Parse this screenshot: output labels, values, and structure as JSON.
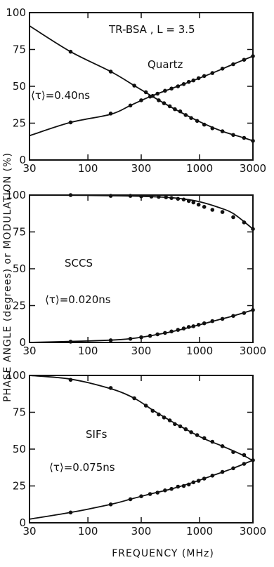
{
  "ylabel": "PHASE  ANGLE (degrees)   or   MODULATION  (%)",
  "xlabel": "FREQUENCY  (MHz)",
  "chart_data": [
    {
      "type": "scatter",
      "xscale": "log",
      "xlim": [
        30,
        3000
      ],
      "ylim": [
        0,
        100
      ],
      "xticks": [
        30,
        100,
        300,
        1000,
        3000
      ],
      "yticks": [
        0,
        25,
        50,
        75,
        100
      ],
      "title": "TR-BSA , L = 3.5",
      "annotations": [
        {
          "text": "Quartz"
        },
        {
          "text": "⟨τ⟩=0.40ns"
        }
      ],
      "series": [
        {
          "role": "modulation",
          "kind": "points",
          "x": [
            70,
            160,
            260,
            330,
            380,
            430,
            480,
            540,
            600,
            670,
            750,
            840,
            950,
            1100,
            1300,
            1600,
            2000,
            2500,
            3000
          ],
          "y": [
            73.5,
            60,
            50.5,
            46,
            43.5,
            40.5,
            38.5,
            36.5,
            34.5,
            33,
            30.5,
            28.5,
            26.5,
            24,
            21.5,
            19.5,
            17,
            15,
            13
          ]
        },
        {
          "role": "modulation",
          "kind": "curve",
          "x": [
            30,
            70,
            160,
            260,
            380,
            600,
            1000,
            1600,
            2500,
            3000
          ],
          "y": [
            91,
            73.5,
            60,
            50.5,
            43,
            34.5,
            26,
            19.5,
            15,
            13
          ]
        },
        {
          "role": "phase",
          "kind": "points",
          "x": [
            70,
            160,
            240,
            300,
            360,
            420,
            490,
            560,
            640,
            720,
            800,
            880,
            980,
            1100,
            1300,
            1600,
            2000,
            2500,
            3000
          ],
          "y": [
            25.5,
            31.5,
            37,
            40.5,
            43,
            45,
            47,
            48.5,
            50,
            51.5,
            53,
            54,
            55.5,
            57,
            59,
            62,
            65,
            68,
            70.5
          ]
        },
        {
          "role": "phase",
          "kind": "curve",
          "x": [
            30,
            70,
            160,
            240,
            360,
            560,
            880,
            1300,
            2000,
            3000
          ],
          "y": [
            16.5,
            25.5,
            31,
            37,
            43,
            48.5,
            54,
            59,
            65,
            70.5
          ]
        }
      ]
    },
    {
      "type": "scatter",
      "xscale": "log",
      "xlim": [
        30,
        3000
      ],
      "ylim": [
        0,
        100
      ],
      "xticks": [
        30,
        100,
        300,
        1000,
        3000
      ],
      "yticks": [
        0,
        25,
        50,
        75,
        100
      ],
      "annotations": [
        {
          "text": "SCCS"
        },
        {
          "text": "⟨τ⟩=0.020ns"
        }
      ],
      "series": [
        {
          "role": "modulation",
          "kind": "points",
          "x": [
            70,
            160,
            240,
            300,
            370,
            430,
            500,
            560,
            640,
            720,
            800,
            880,
            980,
            1100,
            1300,
            1600,
            2000,
            2500,
            3000
          ],
          "y": [
            100,
            99.5,
            99.5,
            99.2,
            99,
            98.8,
            98.5,
            98,
            97.5,
            97,
            96,
            95,
            93.5,
            92,
            90,
            88.5,
            85,
            81.5,
            77
          ]
        },
        {
          "role": "modulation",
          "kind": "curve",
          "x": [
            30,
            100,
            200,
            300,
            500,
            700,
            1000,
            1500,
            2000,
            3000
          ],
          "y": [
            100,
            99.8,
            99.5,
            99.2,
            98.5,
            97.5,
            95.5,
            91.5,
            87.5,
            77
          ]
        },
        {
          "role": "phase",
          "kind": "points",
          "x": [
            70,
            160,
            240,
            300,
            360,
            420,
            490,
            560,
            640,
            720,
            800,
            880,
            980,
            1100,
            1300,
            1600,
            2000,
            2500,
            3000
          ],
          "y": [
            0.5,
            1.5,
            2.5,
            3.5,
            4.5,
            5.5,
            6.5,
            7.5,
            8.5,
            9.5,
            10.5,
            11,
            12,
            13,
            14.5,
            16,
            18,
            20,
            22
          ]
        },
        {
          "role": "phase",
          "kind": "curve",
          "x": [
            30,
            100,
            200,
            300,
            500,
            700,
            1000,
            1500,
            2000,
            3000
          ],
          "y": [
            0,
            1,
            2,
            3.5,
            6.5,
            9,
            12,
            15.5,
            18,
            22
          ]
        }
      ]
    },
    {
      "type": "scatter",
      "xscale": "log",
      "xlim": [
        30,
        3000
      ],
      "ylim": [
        0,
        100
      ],
      "xticks": [
        30,
        100,
        300,
        1000,
        3000
      ],
      "yticks": [
        0,
        25,
        50,
        75,
        100
      ],
      "annotations": [
        {
          "text": "SIFs"
        },
        {
          "text": "⟨τ⟩=0.075ns"
        }
      ],
      "series": [
        {
          "role": "modulation",
          "kind": "points",
          "x": [
            70,
            160,
            260,
            330,
            380,
            430,
            480,
            540,
            600,
            670,
            750,
            840,
            950,
            1100,
            1300,
            1600,
            2000,
            2500
          ],
          "y": [
            97,
            91.5,
            84.5,
            79.5,
            76,
            73.5,
            71.5,
            69.5,
            67,
            65.5,
            63.5,
            61.5,
            59.5,
            57.5,
            55,
            52,
            48,
            46
          ]
        },
        {
          "role": "modulation",
          "kind": "curve",
          "x": [
            30,
            70,
            160,
            260,
            380,
            540,
            750,
            1100,
            1600,
            2500,
            3000
          ],
          "y": [
            100,
            97.5,
            91,
            84.5,
            76.5,
            69.5,
            63.5,
            57,
            52,
            45.5,
            42
          ]
        },
        {
          "role": "phase",
          "kind": "points",
          "x": [
            70,
            160,
            240,
            300,
            360,
            420,
            490,
            560,
            640,
            720,
            800,
            880,
            980,
            1100,
            1300,
            1600,
            2000,
            2500,
            3000
          ],
          "y": [
            7,
            12.5,
            16,
            18,
            19.5,
            20.5,
            22,
            23,
            24.5,
            25,
            26,
            27.5,
            28.5,
            30,
            32,
            34.5,
            37,
            40,
            42.5
          ]
        },
        {
          "role": "phase",
          "kind": "curve",
          "x": [
            30,
            70,
            160,
            240,
            360,
            560,
            880,
            1300,
            2000,
            3000
          ],
          "y": [
            2.5,
            7,
            12.5,
            16,
            19.5,
            23,
            27.5,
            32,
            37,
            42.5
          ]
        }
      ]
    }
  ]
}
